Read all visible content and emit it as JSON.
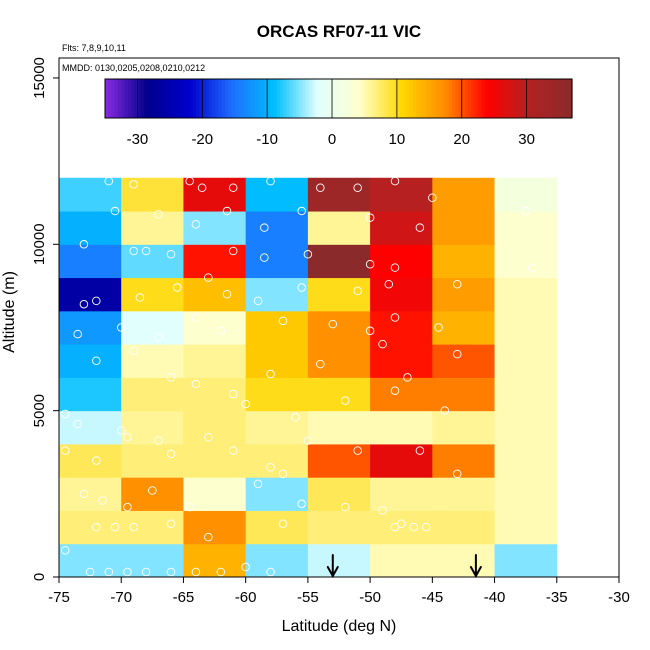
{
  "chart_data": {
    "type": "heatmap",
    "title": "ORCAS RF07-11 VIC",
    "notes": {
      "flights": "Flts: 7,8,9,10,11",
      "dates": "MMDD: 0130,0205,0208,0210,0212"
    },
    "xlabel": "Latitude (deg N)",
    "ylabel": "Altitude (m)",
    "xlim": [
      -75,
      -30
    ],
    "ylim": [
      0,
      15600
    ],
    "x_ticks": [
      -75,
      -70,
      -65,
      -60,
      -55,
      -50,
      -45,
      -40,
      -35,
      -30
    ],
    "x_tick_labels": [
      "-75",
      "-70",
      "-65",
      "-60",
      "-55",
      "-50",
      "-45",
      "-40",
      "-35",
      "-30"
    ],
    "y_ticks": [
      0,
      5000,
      10000,
      15000
    ],
    "y_tick_labels": [
      "0",
      "5000",
      "10000",
      "15000"
    ],
    "lat_bins": [
      -75,
      -70,
      -65,
      -60,
      -55,
      -50,
      -45,
      -40,
      -35
    ],
    "alt_bins": [
      0,
      1000,
      2000,
      3000,
      4000,
      5000,
      6000,
      7000,
      8000,
      9000,
      10000,
      11000,
      12000
    ],
    "values": [
      [
        -5,
        -5,
        14,
        -5,
        -3,
        5,
        5,
        -5
      ],
      [
        7,
        7,
        17,
        8,
        7,
        7,
        7,
        5
      ],
      [
        6,
        17,
        4,
        -5,
        8,
        6,
        6,
        5
      ],
      [
        8,
        7,
        7,
        7,
        20,
        26,
        18,
        5
      ],
      [
        -3,
        6,
        7,
        6,
        5,
        5,
        6,
        5
      ],
      [
        -8,
        7,
        7,
        10,
        10,
        18,
        18,
        5
      ],
      [
        -10,
        5,
        6,
        12,
        17,
        23,
        20,
        5
      ],
      [
        -12,
        -2,
        4,
        12,
        17,
        23,
        14,
        5
      ],
      [
        -26,
        10,
        13,
        -5,
        10,
        25,
        16,
        5
      ],
      [
        -14,
        -6,
        23,
        -14,
        38,
        24,
        14,
        4
      ],
      [
        -10,
        6,
        -5,
        -14,
        6,
        28,
        16,
        4
      ],
      [
        -7,
        9,
        26,
        -9,
        34,
        30,
        16,
        2
      ]
    ],
    "colorbar": {
      "vmin": -35,
      "vmax": 37,
      "ticks": [
        -30,
        -20,
        -10,
        0,
        10,
        20,
        30
      ],
      "tick_labels": [
        "-30",
        "-20",
        "-10",
        "0",
        "10",
        "20",
        "30"
      ],
      "colors": [
        "#8a2be2",
        "#00008b",
        "#0000cd",
        "#1e6fff",
        "#00bfff",
        "#e0ffff",
        "#ffffcc",
        "#ffd700",
        "#ff8c00",
        "#ff0000",
        "#b22222",
        "#8b2a2a"
      ]
    },
    "arrows_latitude": [
      -53,
      -41.5
    ],
    "points": [
      [
        -74.5,
        800
      ],
      [
        -72.5,
        150
      ],
      [
        -71,
        150
      ],
      [
        -69.5,
        150
      ],
      [
        -68,
        150
      ],
      [
        -66,
        150
      ],
      [
        -64,
        150
      ],
      [
        -62,
        150
      ],
      [
        -60,
        300
      ],
      [
        -58,
        150
      ],
      [
        -72,
        1500
      ],
      [
        -70.5,
        1500
      ],
      [
        -69,
        1500
      ],
      [
        -66,
        1600
      ],
      [
        -63,
        1200
      ],
      [
        -57,
        1600
      ],
      [
        -48,
        1500
      ],
      [
        -47.5,
        1600
      ],
      [
        -46.5,
        1500
      ],
      [
        -45.5,
        1500
      ],
      [
        -73,
        2500
      ],
      [
        -71.5,
        2300
      ],
      [
        -69.5,
        2100
      ],
      [
        -67.5,
        2600
      ],
      [
        -64.5,
        2100
      ],
      [
        -59,
        2800
      ],
      [
        -57,
        3100
      ],
      [
        -55.5,
        2200
      ],
      [
        -52,
        2100
      ],
      [
        -49,
        2000
      ],
      [
        -74.5,
        3800
      ],
      [
        -72,
        3500
      ],
      [
        -69.5,
        4200
      ],
      [
        -66,
        3700
      ],
      [
        -61,
        3800
      ],
      [
        -58,
        3300
      ],
      [
        -55,
        4100
      ],
      [
        -51,
        3800
      ],
      [
        -46,
        3800
      ],
      [
        -43,
        3100
      ],
      [
        -74.5,
        4900
      ],
      [
        -73.5,
        4600
      ],
      [
        -70,
        4400
      ],
      [
        -67,
        4100
      ],
      [
        -63,
        4200
      ],
      [
        -60,
        5200
      ],
      [
        -56,
        4800
      ],
      [
        -52,
        5300
      ],
      [
        -48,
        5600
      ],
      [
        -44,
        5000
      ],
      [
        -72,
        6500
      ],
      [
        -69,
        6800
      ],
      [
        -66,
        6000
      ],
      [
        -64,
        5800
      ],
      [
        -61,
        5500
      ],
      [
        -58,
        6100
      ],
      [
        -54,
        6400
      ],
      [
        -49,
        7000
      ],
      [
        -47,
        6000
      ],
      [
        -43,
        6700
      ],
      [
        -73.5,
        7300
      ],
      [
        -70,
        7500
      ],
      [
        -67,
        7200
      ],
      [
        -64,
        7800
      ],
      [
        -62,
        7400
      ],
      [
        -57,
        7700
      ],
      [
        -53,
        7600
      ],
      [
        -50,
        7400
      ],
      [
        -48,
        7800
      ],
      [
        -44.5,
        7500
      ],
      [
        -73,
        8200
      ],
      [
        -72,
        8300
      ],
      [
        -68.5,
        8400
      ],
      [
        -65.5,
        8700
      ],
      [
        -61.5,
        8500
      ],
      [
        -59,
        8300
      ],
      [
        -55.5,
        8700
      ],
      [
        -51,
        8600
      ],
      [
        -48.5,
        8800
      ],
      [
        -43,
        8800
      ],
      [
        -69,
        9800
      ],
      [
        -68,
        9800
      ],
      [
        -66,
        9700
      ],
      [
        -63,
        9000
      ],
      [
        -61,
        9800
      ],
      [
        -58.5,
        9600
      ],
      [
        -55,
        9700
      ],
      [
        -50,
        9400
      ],
      [
        -48,
        9300
      ],
      [
        -37,
        9300
      ],
      [
        -73,
        10000
      ],
      [
        -70.5,
        11000
      ],
      [
        -67,
        10900
      ],
      [
        -64,
        10600
      ],
      [
        -61.5,
        11000
      ],
      [
        -58.5,
        10500
      ],
      [
        -55.5,
        11000
      ],
      [
        -50,
        10800
      ],
      [
        -46,
        10500
      ],
      [
        -37.5,
        11000
      ],
      [
        -71,
        11900
      ],
      [
        -69,
        11800
      ],
      [
        -64.5,
        11900
      ],
      [
        -63.5,
        11700
      ],
      [
        -61,
        11700
      ],
      [
        -58,
        11900
      ],
      [
        -54,
        11700
      ],
      [
        -51,
        11700
      ],
      [
        -48,
        11900
      ],
      [
        -45,
        11400
      ]
    ]
  }
}
